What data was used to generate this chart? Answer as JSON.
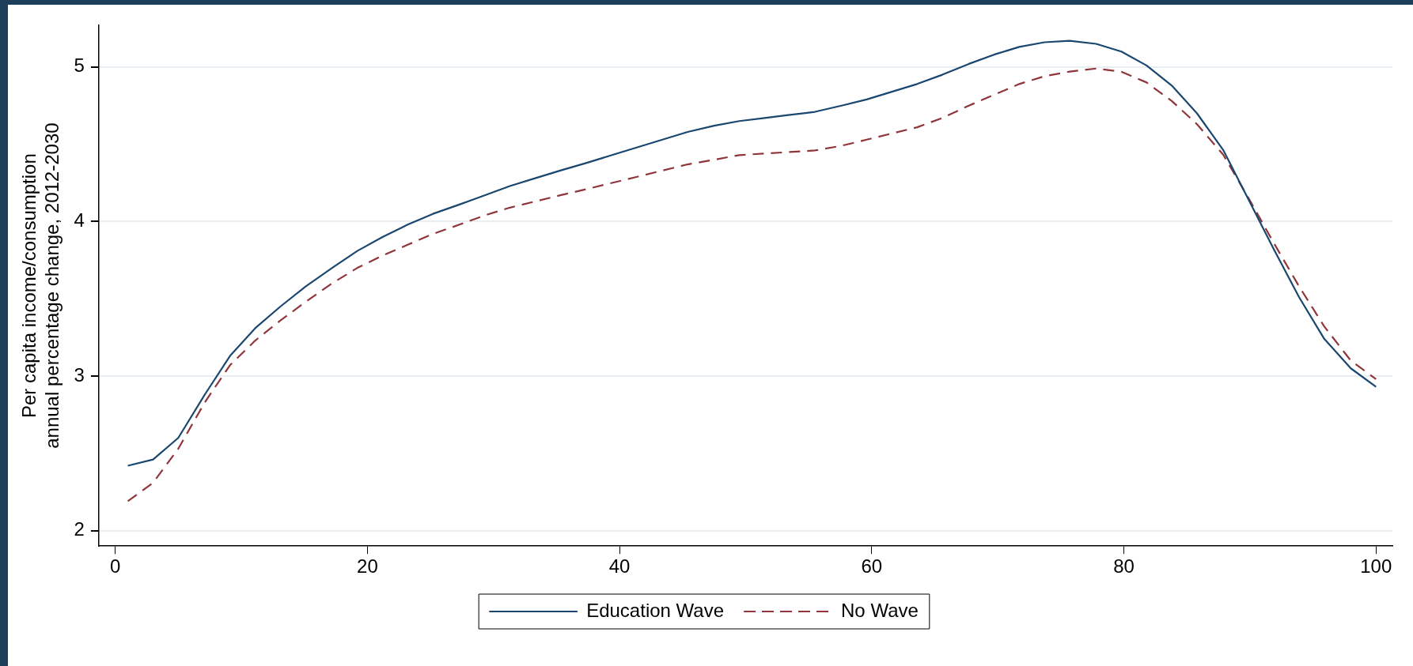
{
  "chart_data": {
    "type": "line",
    "ylabel": "Per capita income/consumption\nannual percentage change, 2012-2030",
    "x": [
      1,
      3,
      5,
      7.1,
      9.1,
      11.1,
      13.1,
      15.1,
      17.2,
      19.2,
      21.2,
      23.2,
      25.2,
      27.3,
      29.3,
      31.3,
      33.3,
      35.3,
      37.4,
      39.4,
      41.4,
      43.4,
      45.4,
      47.5,
      49.5,
      51.5,
      53.5,
      55.5,
      57.6,
      59.6,
      61.6,
      63.6,
      65.6,
      67.7,
      69.7,
      71.7,
      73.7,
      75.7,
      77.8,
      79.8,
      81.8,
      83.8,
      85.8,
      87.9,
      89.9,
      91.9,
      93.9,
      95.9,
      98,
      100
    ],
    "series": [
      {
        "name": "Education Wave",
        "color": "#1a476f",
        "line_style": "solid",
        "values": [
          2.42,
          2.46,
          2.6,
          2.88,
          3.13,
          3.31,
          3.45,
          3.58,
          3.7,
          3.81,
          3.9,
          3.98,
          4.05,
          4.11,
          4.17,
          4.23,
          4.28,
          4.33,
          4.38,
          4.43,
          4.48,
          4.53,
          4.58,
          4.62,
          4.65,
          4.67,
          4.69,
          4.71,
          4.75,
          4.79,
          4.84,
          4.89,
          4.95,
          5.02,
          5.08,
          5.13,
          5.16,
          5.17,
          5.15,
          5.1,
          5.01,
          4.88,
          4.7,
          4.46,
          4.14,
          3.82,
          3.51,
          3.24,
          3.05,
          2.93
        ]
      },
      {
        "name": "No Wave",
        "color": "#90353b",
        "line_style": "dashed",
        "values": [
          2.19,
          2.31,
          2.53,
          2.83,
          3.07,
          3.23,
          3.36,
          3.48,
          3.6,
          3.7,
          3.78,
          3.85,
          3.92,
          3.98,
          4.04,
          4.09,
          4.13,
          4.17,
          4.21,
          4.25,
          4.29,
          4.33,
          4.37,
          4.4,
          4.43,
          4.44,
          4.45,
          4.46,
          4.49,
          4.53,
          4.57,
          4.61,
          4.67,
          4.75,
          4.82,
          4.89,
          4.94,
          4.97,
          4.99,
          4.97,
          4.9,
          4.78,
          4.63,
          4.43,
          4.15,
          3.86,
          3.58,
          3.32,
          3.1,
          2.98
        ]
      }
    ],
    "xlim": [
      -1.3,
      101.3
    ],
    "xticks": [
      0,
      20,
      40,
      60,
      80,
      100
    ],
    "ylim": [
      1.9,
      5.27
    ],
    "yticks": [
      2,
      3,
      4,
      5
    ],
    "grid": "y",
    "legend": "bottom",
    "marker": "none"
  }
}
